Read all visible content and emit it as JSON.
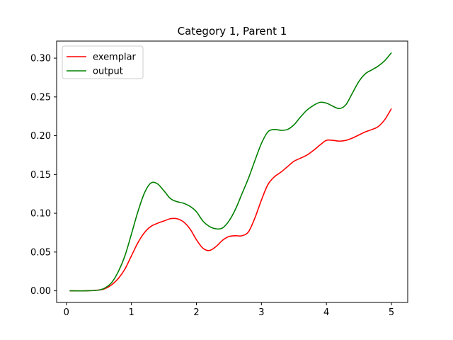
{
  "chart_data": {
    "type": "line",
    "title": "Category 1, Parent 1",
    "xlabel": "",
    "ylabel": "",
    "xlim": [
      -0.15,
      5.25
    ],
    "ylim": [
      -0.015,
      0.322
    ],
    "xticks": [
      0,
      1,
      2,
      3,
      4,
      5
    ],
    "yticks": [
      0.0,
      0.05,
      0.1,
      0.15,
      0.2,
      0.25,
      0.3
    ],
    "xtick_labels": [
      "0",
      "1",
      "2",
      "3",
      "4",
      "5"
    ],
    "ytick_labels": [
      "0.00",
      "0.05",
      "0.10",
      "0.15",
      "0.20",
      "0.25",
      "0.30"
    ],
    "grid": false,
    "legend_position": "upper-left",
    "series": [
      {
        "name": "exemplar",
        "color": "#ff0000",
        "x": [
          0.05,
          0.3,
          0.5,
          0.6,
          0.7,
          0.8,
          0.9,
          1.0,
          1.1,
          1.2,
          1.3,
          1.4,
          1.5,
          1.6,
          1.7,
          1.8,
          1.9,
          2.0,
          2.1,
          2.2,
          2.3,
          2.4,
          2.5,
          2.6,
          2.7,
          2.8,
          2.9,
          3.0,
          3.1,
          3.2,
          3.3,
          3.4,
          3.5,
          3.6,
          3.7,
          3.8,
          3.9,
          4.0,
          4.1,
          4.2,
          4.3,
          4.4,
          4.5,
          4.6,
          4.7,
          4.8,
          4.9,
          5.0
        ],
        "y": [
          0.0,
          0.0,
          0.001,
          0.003,
          0.008,
          0.016,
          0.028,
          0.045,
          0.062,
          0.075,
          0.083,
          0.087,
          0.09,
          0.093,
          0.093,
          0.089,
          0.08,
          0.066,
          0.055,
          0.052,
          0.057,
          0.065,
          0.07,
          0.071,
          0.071,
          0.076,
          0.094,
          0.117,
          0.137,
          0.147,
          0.153,
          0.16,
          0.167,
          0.171,
          0.175,
          0.181,
          0.188,
          0.194,
          0.194,
          0.193,
          0.194,
          0.197,
          0.201,
          0.205,
          0.208,
          0.212,
          0.221,
          0.235
        ]
      },
      {
        "name": "output",
        "color": "#008000",
        "x": [
          0.05,
          0.3,
          0.5,
          0.6,
          0.7,
          0.8,
          0.9,
          1.0,
          1.1,
          1.2,
          1.3,
          1.4,
          1.5,
          1.6,
          1.7,
          1.8,
          1.9,
          2.0,
          2.1,
          2.2,
          2.3,
          2.4,
          2.5,
          2.6,
          2.7,
          2.8,
          2.9,
          3.0,
          3.1,
          3.2,
          3.3,
          3.4,
          3.5,
          3.6,
          3.7,
          3.8,
          3.9,
          4.0,
          4.1,
          4.2,
          4.3,
          4.4,
          4.5,
          4.6,
          4.7,
          4.8,
          4.9,
          5.0
        ],
        "y": [
          0.0,
          0.0,
          0.001,
          0.004,
          0.011,
          0.025,
          0.045,
          0.073,
          0.102,
          0.126,
          0.139,
          0.138,
          0.129,
          0.119,
          0.115,
          0.113,
          0.109,
          0.102,
          0.09,
          0.083,
          0.08,
          0.081,
          0.09,
          0.105,
          0.125,
          0.145,
          0.168,
          0.19,
          0.205,
          0.208,
          0.207,
          0.208,
          0.214,
          0.224,
          0.233,
          0.239,
          0.243,
          0.242,
          0.238,
          0.235,
          0.24,
          0.255,
          0.27,
          0.28,
          0.285,
          0.29,
          0.297,
          0.307
        ]
      }
    ]
  }
}
